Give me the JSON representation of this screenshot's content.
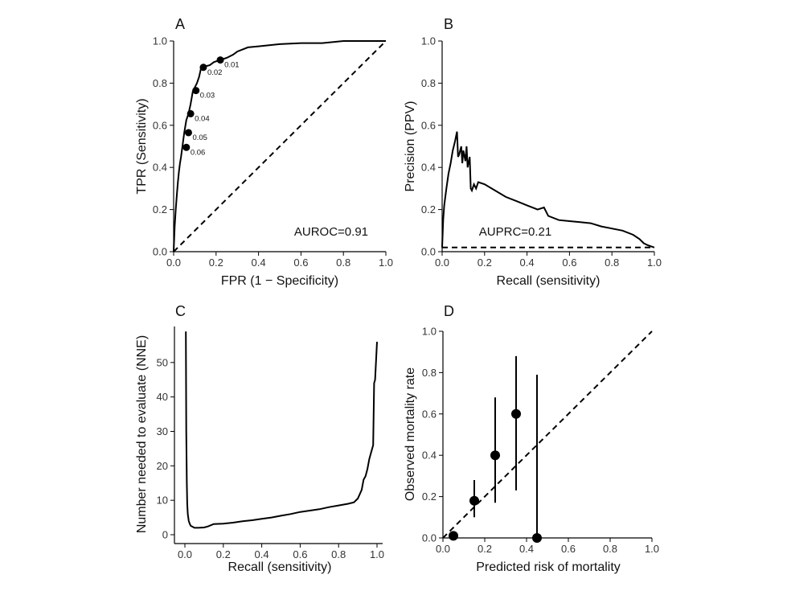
{
  "chart_data": [
    {
      "panel": "A",
      "type": "line",
      "xlabel": "FPR (1 − Specificity)",
      "ylabel": "TPR (Sensitivity)",
      "xlim": [
        0,
        1
      ],
      "ylim": [
        0,
        1
      ],
      "xticks": [
        "0.0",
        "0.2",
        "0.4",
        "0.6",
        "0.8",
        "1.0"
      ],
      "yticks": [
        "0.0",
        "0.2",
        "0.4",
        "0.6",
        "0.8",
        "1.0"
      ],
      "annotation": "AUROC=0.91",
      "series": [
        {
          "x": [
            0,
            0.005,
            0.01,
            0.015,
            0.02,
            0.025,
            0.03,
            0.035,
            0.04,
            0.05,
            0.06,
            0.07,
            0.08,
            0.09,
            0.1,
            0.11,
            0.12,
            0.13,
            0.15,
            0.17,
            0.19,
            0.22,
            0.25,
            0.28,
            0.3,
            0.35,
            0.4,
            0.45,
            0.5,
            0.6,
            0.7,
            0.8,
            0.9,
            1.0
          ],
          "y": [
            0,
            0.12,
            0.2,
            0.27,
            0.33,
            0.38,
            0.42,
            0.45,
            0.49,
            0.565,
            0.625,
            0.655,
            0.7,
            0.76,
            0.78,
            0.8,
            0.83,
            0.875,
            0.88,
            0.885,
            0.9,
            0.91,
            0.92,
            0.935,
            0.95,
            0.97,
            0.975,
            0.98,
            0.985,
            0.99,
            0.99,
            1.0,
            1.0,
            1.0
          ]
        },
        {
          "name": "reference",
          "x": [
            0,
            1
          ],
          "y": [
            0,
            1
          ]
        }
      ],
      "points": [
        {
          "x": 0.22,
          "y": 0.91,
          "label": "0.01"
        },
        {
          "x": 0.14,
          "y": 0.875,
          "label": "0.02"
        },
        {
          "x": 0.105,
          "y": 0.765,
          "label": "0.03"
        },
        {
          "x": 0.08,
          "y": 0.655,
          "label": "0.04"
        },
        {
          "x": 0.07,
          "y": 0.565,
          "label": "0.05"
        },
        {
          "x": 0.06,
          "y": 0.495,
          "label": "0.06"
        }
      ]
    },
    {
      "panel": "B",
      "type": "line",
      "xlabel": "Recall (sensitivity)",
      "ylabel": "Precision (PPV)",
      "xlim": [
        0,
        1
      ],
      "ylim": [
        0,
        1
      ],
      "xticks": [
        "0.0",
        "0.2",
        "0.4",
        "0.6",
        "0.8",
        "1.0"
      ],
      "yticks": [
        "0.0",
        "0.2",
        "0.4",
        "0.6",
        "0.8",
        "1.0"
      ],
      "annotation": "AUPRC=0.21",
      "series": [
        {
          "x": [
            0,
            0.005,
            0.01,
            0.02,
            0.03,
            0.04,
            0.05,
            0.06,
            0.07,
            0.075,
            0.08,
            0.09,
            0.095,
            0.1,
            0.11,
            0.115,
            0.12,
            0.13,
            0.135,
            0.14,
            0.15,
            0.16,
            0.17,
            0.2,
            0.25,
            0.3,
            0.35,
            0.4,
            0.45,
            0.48,
            0.5,
            0.55,
            0.6,
            0.65,
            0.7,
            0.75,
            0.8,
            0.85,
            0.9,
            0.93,
            0.95,
            0.97,
            1.0
          ],
          "y": [
            0.02,
            0.15,
            0.22,
            0.3,
            0.37,
            0.42,
            0.48,
            0.52,
            0.57,
            0.45,
            0.46,
            0.5,
            0.42,
            0.48,
            0.43,
            0.5,
            0.4,
            0.45,
            0.3,
            0.29,
            0.32,
            0.3,
            0.33,
            0.32,
            0.29,
            0.26,
            0.24,
            0.22,
            0.2,
            0.21,
            0.17,
            0.15,
            0.145,
            0.14,
            0.135,
            0.12,
            0.11,
            0.1,
            0.08,
            0.06,
            0.04,
            0.03,
            0.02
          ]
        },
        {
          "name": "baseline",
          "x": [
            0,
            1
          ],
          "y": [
            0.02,
            0.02
          ]
        }
      ]
    },
    {
      "panel": "C",
      "type": "line",
      "xlabel": "Recall (sensitivity)",
      "ylabel": "Number needed to evaluate (NNE)",
      "xlim": [
        0,
        1
      ],
      "ylim": [
        0,
        60
      ],
      "xticks": [
        "0.0",
        "0.2",
        "0.4",
        "0.6",
        "0.8",
        "1.0"
      ],
      "yticks": [
        "0",
        "10",
        "20",
        "30",
        "40",
        "50"
      ],
      "series": [
        {
          "x": [
            0.005,
            0.007,
            0.01,
            0.012,
            0.015,
            0.02,
            0.025,
            0.03,
            0.04,
            0.05,
            0.07,
            0.1,
            0.12,
            0.15,
            0.2,
            0.25,
            0.3,
            0.35,
            0.4,
            0.45,
            0.5,
            0.55,
            0.6,
            0.65,
            0.7,
            0.75,
            0.8,
            0.85,
            0.88,
            0.9,
            0.92,
            0.93,
            0.94,
            0.95,
            0.96,
            0.97,
            0.98,
            0.985,
            0.99,
            1.0
          ],
          "y": [
            59,
            30,
            15,
            9,
            6,
            4,
            3.2,
            2.6,
            2.3,
            2,
            2,
            2.1,
            2.4,
            3.1,
            3.2,
            3.5,
            3.9,
            4.2,
            4.6,
            5.0,
            5.5,
            6.0,
            6.6,
            7.0,
            7.4,
            8.0,
            8.5,
            9.0,
            9.4,
            10.5,
            13,
            16,
            17,
            19,
            22,
            24,
            26,
            44,
            45,
            56
          ]
        }
      ]
    },
    {
      "panel": "D",
      "type": "scatter",
      "xlabel": "Predicted risk of mortality",
      "ylabel": "Observed mortality rate",
      "xlim": [
        0,
        1
      ],
      "ylim": [
        0,
        1
      ],
      "xticks": [
        "0.0",
        "0.2",
        "0.4",
        "0.6",
        "0.8",
        "1.0"
      ],
      "yticks": [
        "0.0",
        "0.2",
        "0.4",
        "0.6",
        "0.8",
        "1.0"
      ],
      "points": [
        {
          "x": 0.05,
          "y": 0.01,
          "lo": 0.0,
          "hi": 0.02
        },
        {
          "x": 0.15,
          "y": 0.18,
          "lo": 0.1,
          "hi": 0.28
        },
        {
          "x": 0.25,
          "y": 0.4,
          "lo": 0.17,
          "hi": 0.68
        },
        {
          "x": 0.35,
          "y": 0.6,
          "lo": 0.23,
          "hi": 0.88
        },
        {
          "x": 0.45,
          "y": 0.0,
          "lo": 0.0,
          "hi": 0.79
        }
      ],
      "series": [
        {
          "name": "reference",
          "x": [
            0,
            1
          ],
          "y": [
            0,
            1
          ]
        }
      ]
    }
  ]
}
